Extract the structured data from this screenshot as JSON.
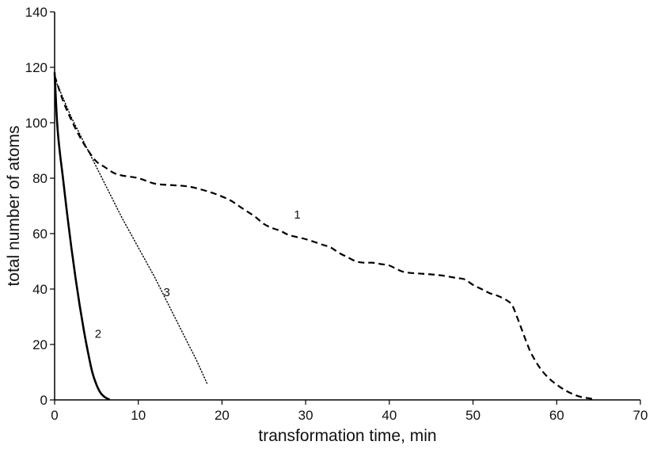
{
  "chart_data": {
    "type": "line",
    "xlabel": "transformation time, min",
    "ylabel": "total number of atoms",
    "xlim": [
      0,
      70
    ],
    "ylim": [
      0,
      140
    ],
    "xticks": [
      0,
      10,
      20,
      30,
      40,
      50,
      60,
      70
    ],
    "yticks": [
      0,
      20,
      40,
      60,
      80,
      100,
      120,
      140
    ],
    "grid": false,
    "legend": "none",
    "series": [
      {
        "name": "1",
        "line_style": "dashed",
        "color": "#000000",
        "x": [
          0,
          1,
          2,
          3,
          4,
          5,
          6,
          7,
          8,
          10,
          12,
          14,
          16,
          18,
          19.5,
          21,
          22,
          23,
          24,
          25,
          26,
          27,
          28,
          30,
          32,
          33,
          34,
          35,
          36,
          37,
          38,
          39,
          40,
          41,
          42,
          44,
          46,
          48,
          49,
          50,
          51,
          52,
          53,
          54,
          54.6,
          55,
          55.5,
          56,
          56.5,
          57,
          58,
          59,
          60,
          61,
          62,
          63,
          64,
          64.5
        ],
        "y": [
          117,
          108,
          101,
          95,
          90,
          86,
          84,
          82,
          81,
          80,
          78,
          77.5,
          77,
          75.5,
          74,
          72,
          70,
          68,
          66,
          63.5,
          62,
          61,
          59.5,
          58,
          56,
          55,
          53,
          51.5,
          50,
          49.5,
          49.5,
          49,
          48.5,
          47,
          46,
          45.5,
          45,
          44,
          43.5,
          41.5,
          40,
          38.5,
          37.5,
          36,
          34.5,
          32,
          28,
          24,
          20,
          16.5,
          11.5,
          8,
          5.5,
          3.5,
          2,
          1,
          0.5,
          0.2
        ]
      },
      {
        "name": "2",
        "line_style": "solid",
        "color": "#000000",
        "x": [
          0,
          0.3,
          0.6,
          1,
          1.5,
          2,
          2.5,
          3,
          3.5,
          4,
          4.5,
          5,
          5.5,
          6,
          6.5
        ],
        "y": [
          118,
          100,
          90,
          80,
          67,
          55,
          44,
          34,
          25,
          17,
          10,
          5.5,
          2.5,
          1,
          0.2
        ]
      },
      {
        "name": "3",
        "line_style": "dotted",
        "color": "#000000",
        "x": [
          0,
          1,
          2,
          3,
          4,
          5,
          6,
          7,
          8,
          9,
          10,
          11,
          12,
          13,
          14,
          15,
          16,
          17,
          18.2
        ],
        "y": [
          116,
          109,
          102,
          96,
          90,
          84,
          78,
          72,
          66,
          60.5,
          55,
          49.5,
          44,
          38,
          32,
          26,
          20,
          14,
          6
        ]
      }
    ],
    "annotations": [
      {
        "text": "1",
        "x": 29,
        "y": 65.5
      },
      {
        "text": "2",
        "x": 5.2,
        "y": 22.5
      },
      {
        "text": "3",
        "x": 13.4,
        "y": 37.5
      }
    ]
  }
}
